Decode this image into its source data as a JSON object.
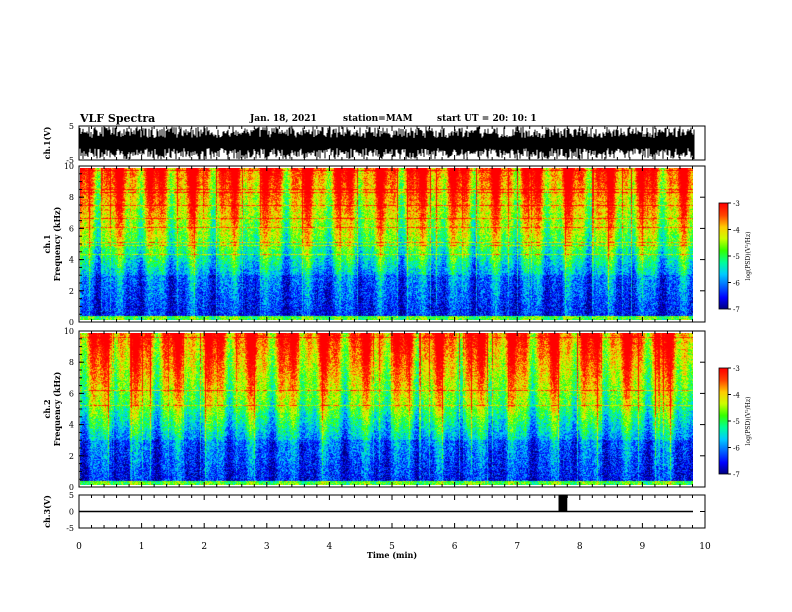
{
  "header": {
    "title": "VLF Spectra",
    "date": "Jan. 18, 2021",
    "station": "station=MAM",
    "start": "start UT =  20: 10: 1"
  },
  "chart_data": [
    {
      "type": "line",
      "panel": "ch1-waveform",
      "ylabel": "ch.1(V)",
      "ylim": [
        -5,
        5
      ],
      "yticks": [
        "5",
        "-5"
      ],
      "xlim": [
        0,
        10
      ]
    },
    {
      "type": "heatmap",
      "panel": "ch1-spectrogram",
      "ylabel": "ch.1\nFrequency (kHz)",
      "ylim": [
        0,
        10
      ],
      "yticks": [
        "0",
        "2",
        "4",
        "6",
        "8",
        "10"
      ],
      "xlim": [
        0,
        10
      ],
      "x_data_end": 9.83,
      "colorbar": {
        "label": "log(PSD)(V²/Hz)",
        "range": [
          -7,
          -3
        ],
        "ticks": [
          "-3",
          "-4",
          "-5",
          "-6",
          "-7"
        ]
      }
    },
    {
      "type": "heatmap",
      "panel": "ch2-spectrogram",
      "ylabel": "ch.2\nFrequency (kHz)",
      "ylim": [
        0,
        10
      ],
      "yticks": [
        "0",
        "2",
        "4",
        "6",
        "8",
        "10"
      ],
      "xlim": [
        0,
        10
      ],
      "x_data_end": 9.83,
      "colorbar": {
        "label": "log(PSD)(V²/Hz)",
        "range": [
          -7,
          -3
        ],
        "ticks": [
          "-3",
          "-4",
          "-5",
          "-6",
          "-7"
        ]
      }
    },
    {
      "type": "line",
      "panel": "ch3-waveform",
      "ylabel": "ch.3(V)",
      "ylim": [
        -5,
        5
      ],
      "yticks": [
        "5",
        "0",
        "-5"
      ],
      "xlim": [
        0,
        10
      ],
      "baseline_value": 0,
      "pulse": {
        "x_start": 7.66,
        "x_end": 7.8,
        "value": 5
      },
      "xlabel": "Time (min)",
      "xticks": [
        "0",
        "1",
        "2",
        "3",
        "4",
        "5",
        "6",
        "7",
        "8",
        "9",
        "10"
      ]
    }
  ],
  "colors": {
    "scale": [
      "#00007a",
      "#0000ff",
      "#0066ff",
      "#00ccff",
      "#00ff99",
      "#33ff00",
      "#ccff00",
      "#ffcc00",
      "#ff4400",
      "#ff0000"
    ]
  }
}
